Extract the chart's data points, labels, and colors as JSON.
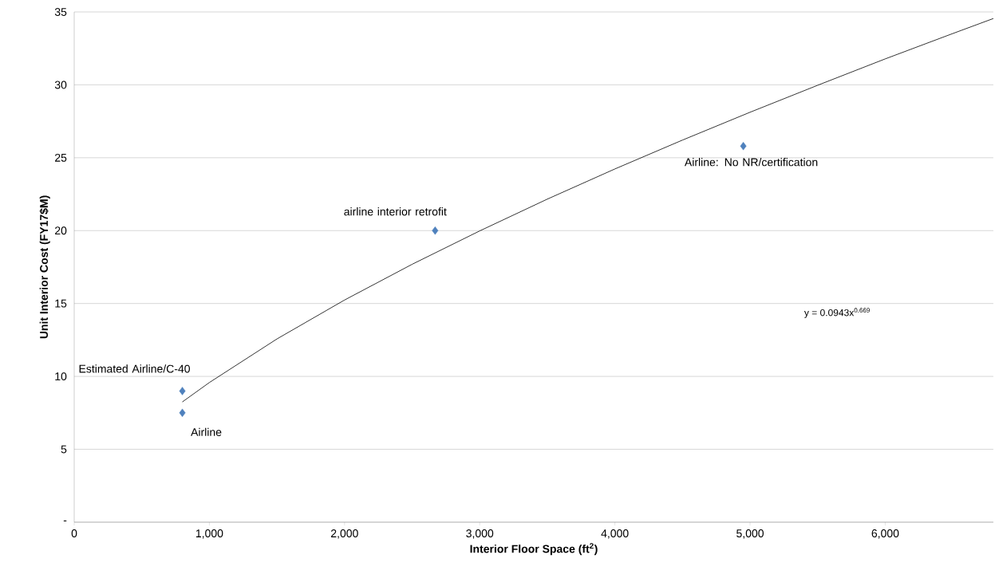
{
  "chart_data": {
    "type": "scatter",
    "xlabel": "Interior Floor Space (ft$^{2}$)",
    "ylabel": "Unit Interior Cost (FY17$M)",
    "xlim": [
      0,
      6800
    ],
    "ylim": [
      0,
      35
    ],
    "xticks": [
      0,
      {
        "value": 1000,
        "label": "1,000"
      },
      {
        "value": 2000,
        "label": "2,000"
      },
      {
        "value": 3000,
        "label": "3,000"
      },
      {
        "value": 4000,
        "label": "4,000"
      },
      {
        "value": 5000,
        "label": "5,000"
      },
      {
        "value": 6000,
        "label": "6,000"
      }
    ],
    "yticks": [
      {
        "value": 0,
        "label": "-"
      },
      5,
      10,
      15,
      20,
      25,
      30,
      35
    ],
    "grid": "y",
    "marker": "diamond",
    "series": [
      {
        "color": "#4f81bd",
        "x": [
          800,
          800,
          2670,
          4950
        ],
        "values": [
          9,
          7.5,
          20,
          25.8
        ]
      },
      {
        "type": "line",
        "color": "#000000",
        "marker": "none",
        "x": [
          800,
          1000,
          1500,
          2000,
          2500,
          3000,
          3500,
          4000,
          4500,
          5000,
          5500,
          6000,
          6500,
          6800
        ],
        "values": [
          8.25,
          9.58,
          12.57,
          15.24,
          17.69,
          19.98,
          22.16,
          24.23,
          26.21,
          28.12,
          29.97,
          31.78,
          33.52,
          34.55
        ]
      }
    ],
    "annotations": [
      {
        "text": "Estimated Airline/C-40",
        "x": 800,
        "y": 9
      },
      {
        "text": "Airline",
        "x": 800,
        "y": 7.5
      },
      {
        "text": "airline interior retrofit",
        "x": 2670,
        "y": 20
      },
      {
        "text": "Airline: No NR/certification",
        "x": 4950,
        "y": 25.8
      },
      "y = 0.0943x$^{0.669}$"
    ]
  }
}
